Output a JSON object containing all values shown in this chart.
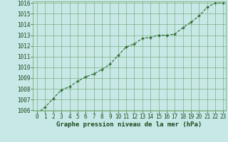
{
  "x": [
    0,
    1,
    2,
    3,
    4,
    5,
    6,
    7,
    8,
    9,
    10,
    11,
    12,
    13,
    14,
    15,
    16,
    17,
    18,
    19,
    20,
    21,
    22,
    23
  ],
  "y": [
    1005.7,
    1006.3,
    1007.1,
    1007.9,
    1008.2,
    1008.7,
    1009.1,
    1009.4,
    1009.8,
    1010.3,
    1011.1,
    1011.9,
    1012.2,
    1012.7,
    1012.8,
    1013.0,
    1013.0,
    1013.1,
    1013.7,
    1014.2,
    1014.8,
    1015.6,
    1016.0,
    1016.0
  ],
  "line_color": "#2d6a2d",
  "marker": "+",
  "bg_color": "#c8e8e8",
  "grid_color": "#7bb07b",
  "xlabel": "Graphe pression niveau de la mer (hPa)",
  "xlabel_color": "#1a4a1a",
  "tick_color": "#1a4a1a",
  "ylim_min": 1006,
  "ylim_max": 1016,
  "xlim_min": 0,
  "xlim_max": 23,
  "yticks": [
    1006,
    1007,
    1008,
    1009,
    1010,
    1011,
    1012,
    1013,
    1014,
    1015,
    1016
  ],
  "xticks": [
    0,
    1,
    2,
    3,
    4,
    5,
    6,
    7,
    8,
    9,
    10,
    11,
    12,
    13,
    14,
    15,
    16,
    17,
    18,
    19,
    20,
    21,
    22,
    23
  ],
  "xlabel_fontsize": 6.5,
  "tick_fontsize": 5.5,
  "line_width": 0.8,
  "marker_size": 3.5,
  "marker_edge_width": 1.0
}
